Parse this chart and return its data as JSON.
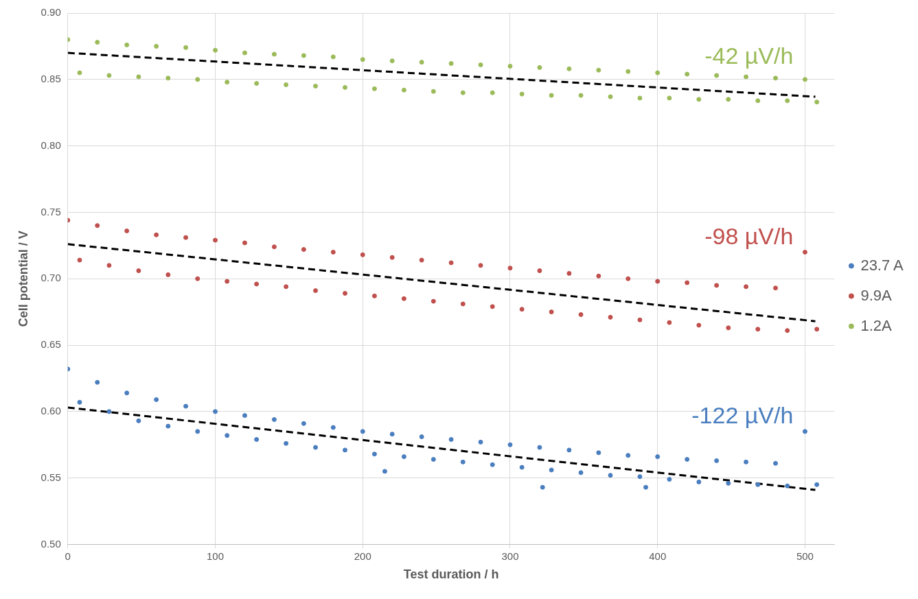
{
  "chart_data": {
    "type": "scatter",
    "xlabel": "Test duration / h",
    "ylabel": "Cell potential / V",
    "xlim": [
      0,
      520
    ],
    "xticks": [
      0,
      100,
      200,
      300,
      400,
      500
    ],
    "ylim": [
      0.5,
      0.9
    ],
    "yticks": [
      {
        "value": 0.5,
        "label": "0.50"
      },
      {
        "value": 0.55,
        "label": "0.55"
      },
      {
        "value": 0.6,
        "label": "0.60"
      },
      {
        "value": 0.65,
        "label": "0.65"
      },
      {
        "value": 0.7,
        "label": "0.70"
      },
      {
        "value": 0.75,
        "label": "0.75"
      },
      {
        "value": 0.8,
        "label": "0.80"
      },
      {
        "value": 0.85,
        "label": "0.85"
      },
      {
        "value": 0.9,
        "label": "0.90"
      }
    ],
    "grid": true,
    "legend": "right",
    "marker": "circle",
    "series": [
      {
        "name": "23.7 A",
        "color": "#4a7ebf",
        "x": [
          0,
          8,
          20,
          28,
          40,
          48,
          60,
          68,
          80,
          88,
          100,
          108,
          120,
          128,
          140,
          148,
          160,
          168,
          180,
          188,
          200,
          208,
          220,
          228,
          240,
          248,
          260,
          268,
          280,
          288,
          300,
          308,
          320,
          328,
          340,
          348,
          360,
          368,
          380,
          388,
          400,
          408,
          420,
          428,
          440,
          448,
          460,
          468,
          480,
          488,
          500,
          508,
          215,
          322,
          392
        ],
        "values": [
          0.632,
          0.607,
          0.622,
          0.6,
          0.614,
          0.593,
          0.609,
          0.589,
          0.604,
          0.585,
          0.6,
          0.582,
          0.597,
          0.579,
          0.594,
          0.576,
          0.591,
          0.573,
          0.588,
          0.571,
          0.585,
          0.568,
          0.583,
          0.566,
          0.581,
          0.564,
          0.579,
          0.562,
          0.577,
          0.56,
          0.575,
          0.558,
          0.573,
          0.556,
          0.571,
          0.554,
          0.569,
          0.552,
          0.567,
          0.551,
          0.566,
          0.549,
          0.564,
          0.547,
          0.563,
          0.546,
          0.562,
          0.545,
          0.561,
          0.544,
          0.585,
          0.545,
          0.555,
          0.543,
          0.543
        ]
      },
      {
        "name": "9.9A",
        "color": "#c0504d",
        "x": [
          0,
          8,
          20,
          28,
          40,
          48,
          60,
          68,
          80,
          88,
          100,
          108,
          120,
          128,
          140,
          148,
          160,
          168,
          180,
          188,
          200,
          208,
          220,
          228,
          240,
          248,
          260,
          268,
          280,
          288,
          300,
          308,
          320,
          328,
          340,
          348,
          360,
          368,
          380,
          388,
          400,
          408,
          420,
          428,
          440,
          448,
          460,
          468,
          480,
          488,
          500,
          508
        ],
        "values": [
          0.744,
          0.714,
          0.74,
          0.71,
          0.736,
          0.706,
          0.733,
          0.703,
          0.731,
          0.7,
          0.729,
          0.698,
          0.727,
          0.696,
          0.724,
          0.694,
          0.722,
          0.691,
          0.72,
          0.689,
          0.718,
          0.687,
          0.716,
          0.685,
          0.714,
          0.683,
          0.712,
          0.681,
          0.71,
          0.679,
          0.708,
          0.677,
          0.706,
          0.675,
          0.704,
          0.673,
          0.702,
          0.671,
          0.7,
          0.669,
          0.698,
          0.667,
          0.697,
          0.665,
          0.695,
          0.663,
          0.694,
          0.662,
          0.693,
          0.661,
          0.72,
          0.662
        ]
      },
      {
        "name": "1.2A",
        "color": "#9bbb59",
        "x": [
          0,
          8,
          20,
          28,
          40,
          48,
          60,
          68,
          80,
          88,
          100,
          108,
          120,
          128,
          140,
          148,
          160,
          168,
          180,
          188,
          200,
          208,
          220,
          228,
          240,
          248,
          260,
          268,
          280,
          288,
          300,
          308,
          320,
          328,
          340,
          348,
          360,
          368,
          380,
          388,
          400,
          408,
          420,
          428,
          440,
          448,
          460,
          468,
          480,
          488,
          500,
          508
        ],
        "values": [
          0.88,
          0.855,
          0.878,
          0.853,
          0.876,
          0.852,
          0.875,
          0.851,
          0.874,
          0.85,
          0.872,
          0.848,
          0.87,
          0.847,
          0.869,
          0.846,
          0.868,
          0.845,
          0.867,
          0.844,
          0.865,
          0.843,
          0.864,
          0.842,
          0.863,
          0.841,
          0.862,
          0.84,
          0.861,
          0.84,
          0.86,
          0.839,
          0.859,
          0.838,
          0.858,
          0.838,
          0.857,
          0.837,
          0.856,
          0.836,
          0.855,
          0.836,
          0.854,
          0.835,
          0.853,
          0.835,
          0.852,
          0.834,
          0.851,
          0.834,
          0.85,
          0.833
        ]
      },
      {
        "type": "line",
        "color": "#000000",
        "line_style": "dashed",
        "marker": "none",
        "x": [
          0,
          507
        ],
        "values": [
          0.603,
          0.541
        ]
      },
      {
        "type": "line",
        "color": "#000000",
        "line_style": "dashed",
        "marker": "none",
        "x": [
          0,
          507
        ],
        "values": [
          0.726,
          0.668
        ]
      },
      {
        "type": "line",
        "color": "#000000",
        "line_style": "dashed",
        "marker": "none",
        "x": [
          0,
          507
        ],
        "values": [
          0.87,
          0.837
        ]
      }
    ],
    "annotations": [
      "-122 µV/h",
      "-98 µV/h",
      "-42 µV/h"
    ]
  }
}
